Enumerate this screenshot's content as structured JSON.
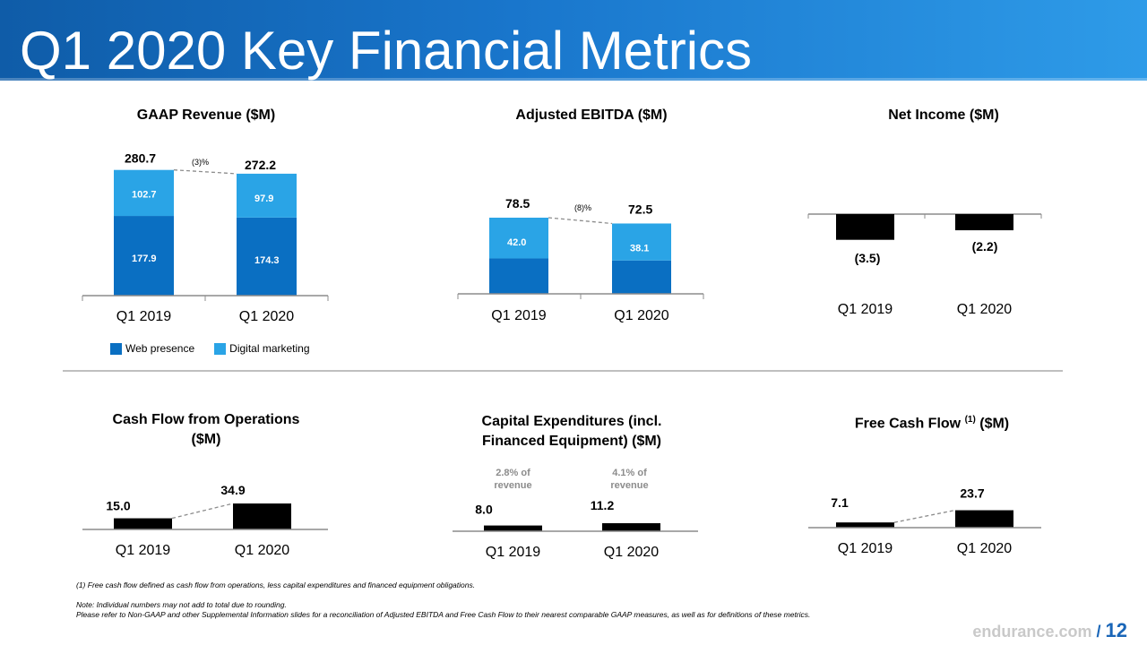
{
  "page": {
    "title": "Q1 2020 Key Financial Metrics",
    "brand": "endurance.com",
    "slash": "/",
    "page_number": "12",
    "footnotes": [
      "(1)      Free cash flow defined as cash flow from operations, less capital expenditures and financed equipment obligations.",
      "Note:  Individual numbers may not add to total due to rounding.",
      "Please refer to Non-GAAP and other Supplemental Information slides for a reconciliation of Adjusted EBITDA and Free Cash Flow to their nearest comparable GAAP measures, as well as for definitions of these metrics."
    ]
  },
  "colors": {
    "web_presence": "#0a6fc2",
    "digital_marketing": "#2aa4e6",
    "black_bar": "#000000",
    "header": "#1a70c8"
  },
  "legend": [
    {
      "label": "Web presence",
      "color": "#0a6fc2"
    },
    {
      "label": "Digital marketing",
      "color": "#2aa4e6"
    }
  ],
  "chart_data": [
    {
      "type": "bar",
      "title": "GAAP Revenue ($M)",
      "stacked": true,
      "categories": [
        "Q1 2019",
        "Q1 2020"
      ],
      "series": [
        {
          "name": "Web presence",
          "values": [
            177.9,
            174.3
          ]
        },
        {
          "name": "Digital marketing",
          "values": [
            102.7,
            97.9
          ]
        }
      ],
      "totals": [
        280.7,
        272.2
      ],
      "totals_labels": [
        "280.7",
        "272.2"
      ],
      "segment_labels": [
        [
          "177.9",
          "174.3"
        ],
        [
          "102.7",
          "97.9"
        ]
      ],
      "change_label": "(3)%"
    },
    {
      "type": "bar",
      "title": "Adjusted EBITDA ($M)",
      "stacked": true,
      "categories": [
        "Q1 2019",
        "Q1 2020"
      ],
      "series": [
        {
          "name": "Web presence",
          "values": [
            36.5,
            34.4
          ]
        },
        {
          "name": "Digital marketing",
          "values": [
            42.0,
            38.1
          ]
        }
      ],
      "totals": [
        78.5,
        72.5
      ],
      "totals_labels": [
        "78.5",
        "72.5"
      ],
      "segment_labels": [
        [
          "36.5",
          "34.4"
        ],
        [
          "42.0",
          "38.1"
        ]
      ],
      "change_label": "(8)%"
    },
    {
      "type": "bar",
      "title": "Net Income ($M)",
      "categories": [
        "Q1 2019",
        "Q1 2020"
      ],
      "values": [
        -3.5,
        -2.2
      ],
      "value_labels": [
        "(3.5)",
        "(2.2)"
      ]
    },
    {
      "type": "bar",
      "title": "Cash Flow from Operations ($M)",
      "categories": [
        "Q1 2019",
        "Q1 2020"
      ],
      "values": [
        15.0,
        34.9
      ],
      "value_labels": [
        "15.0",
        "34.9"
      ]
    },
    {
      "type": "bar",
      "title": "Capital Expenditures (incl. Financed Equipment) ($M)",
      "categories": [
        "Q1 2019",
        "Q1 2020"
      ],
      "values": [
        8.0,
        11.2
      ],
      "value_labels": [
        "8.0",
        "11.2"
      ],
      "annotations": [
        [
          "2.8% of",
          "revenue"
        ],
        [
          "4.1% of",
          "revenue"
        ]
      ]
    },
    {
      "type": "bar",
      "title": "Free Cash Flow (1) ($M)",
      "categories": [
        "Q1 2019",
        "Q1 2020"
      ],
      "values": [
        7.1,
        23.7
      ],
      "value_labels": [
        "7.1",
        "23.7"
      ]
    }
  ],
  "titles": {
    "c0": "GAAP Revenue ($M)",
    "c1": "Adjusted EBITDA ($M)",
    "c2": "Net Income ($M)",
    "c3_line1": "Cash Flow from Operations",
    "c3_line2": "($M)",
    "c4_line1": "Capital Expenditures (incl.",
    "c4_line2": "Financed Equipment) ($M)",
    "c5_pre": "Free Cash Flow ",
    "c5_sup": "(1)",
    "c5_post": " ($M)"
  }
}
